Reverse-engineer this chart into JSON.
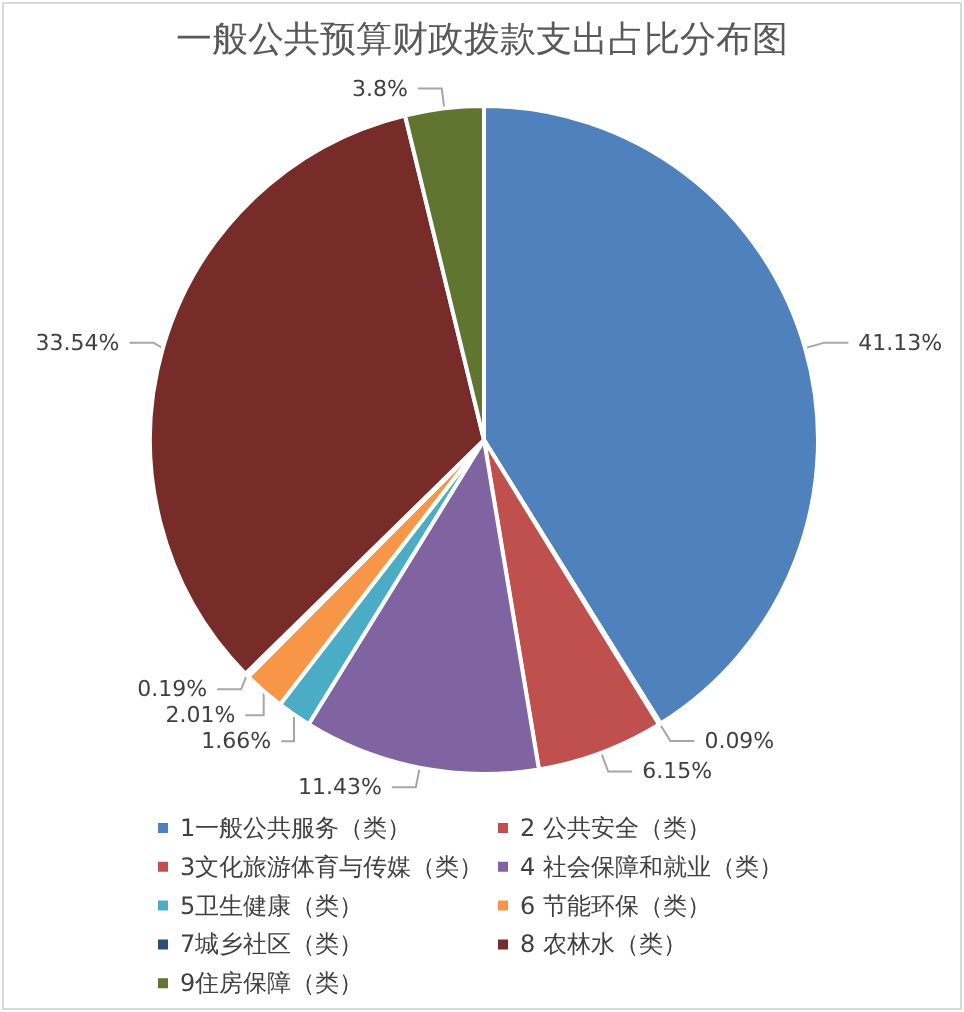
{
  "chart_data": {
    "type": "pie",
    "title": "一般公共预算财政拨款支出占比分布图",
    "categories": [
      "1一般公共服务（类）",
      "2 公共安全（类）",
      "3文化旅游体育与传媒（类）",
      "4 社会保障和就业（类）",
      "5卫生健康（类）",
      "6 节能环保（类）",
      "7城乡社区（类）",
      "8 农林水（类）",
      "9住房保障（类）"
    ],
    "values": [
      41.13,
      0.09,
      6.15,
      11.43,
      1.66,
      2.01,
      0.19,
      33.54,
      3.8
    ],
    "colors": [
      "#4f81bd",
      "#c0504d",
      "#c0504d",
      "#8064a2",
      "#4bacc6",
      "#f79646",
      "#2c4d75",
      "#772c2a",
      "#5f7530"
    ],
    "value_labels": [
      "41.13%",
      "0.09%",
      "6.15%",
      "11.43%",
      "1.66%",
      "2.01%",
      "0.19%",
      "33.54%",
      "3.8%"
    ],
    "legend": "bottom"
  }
}
